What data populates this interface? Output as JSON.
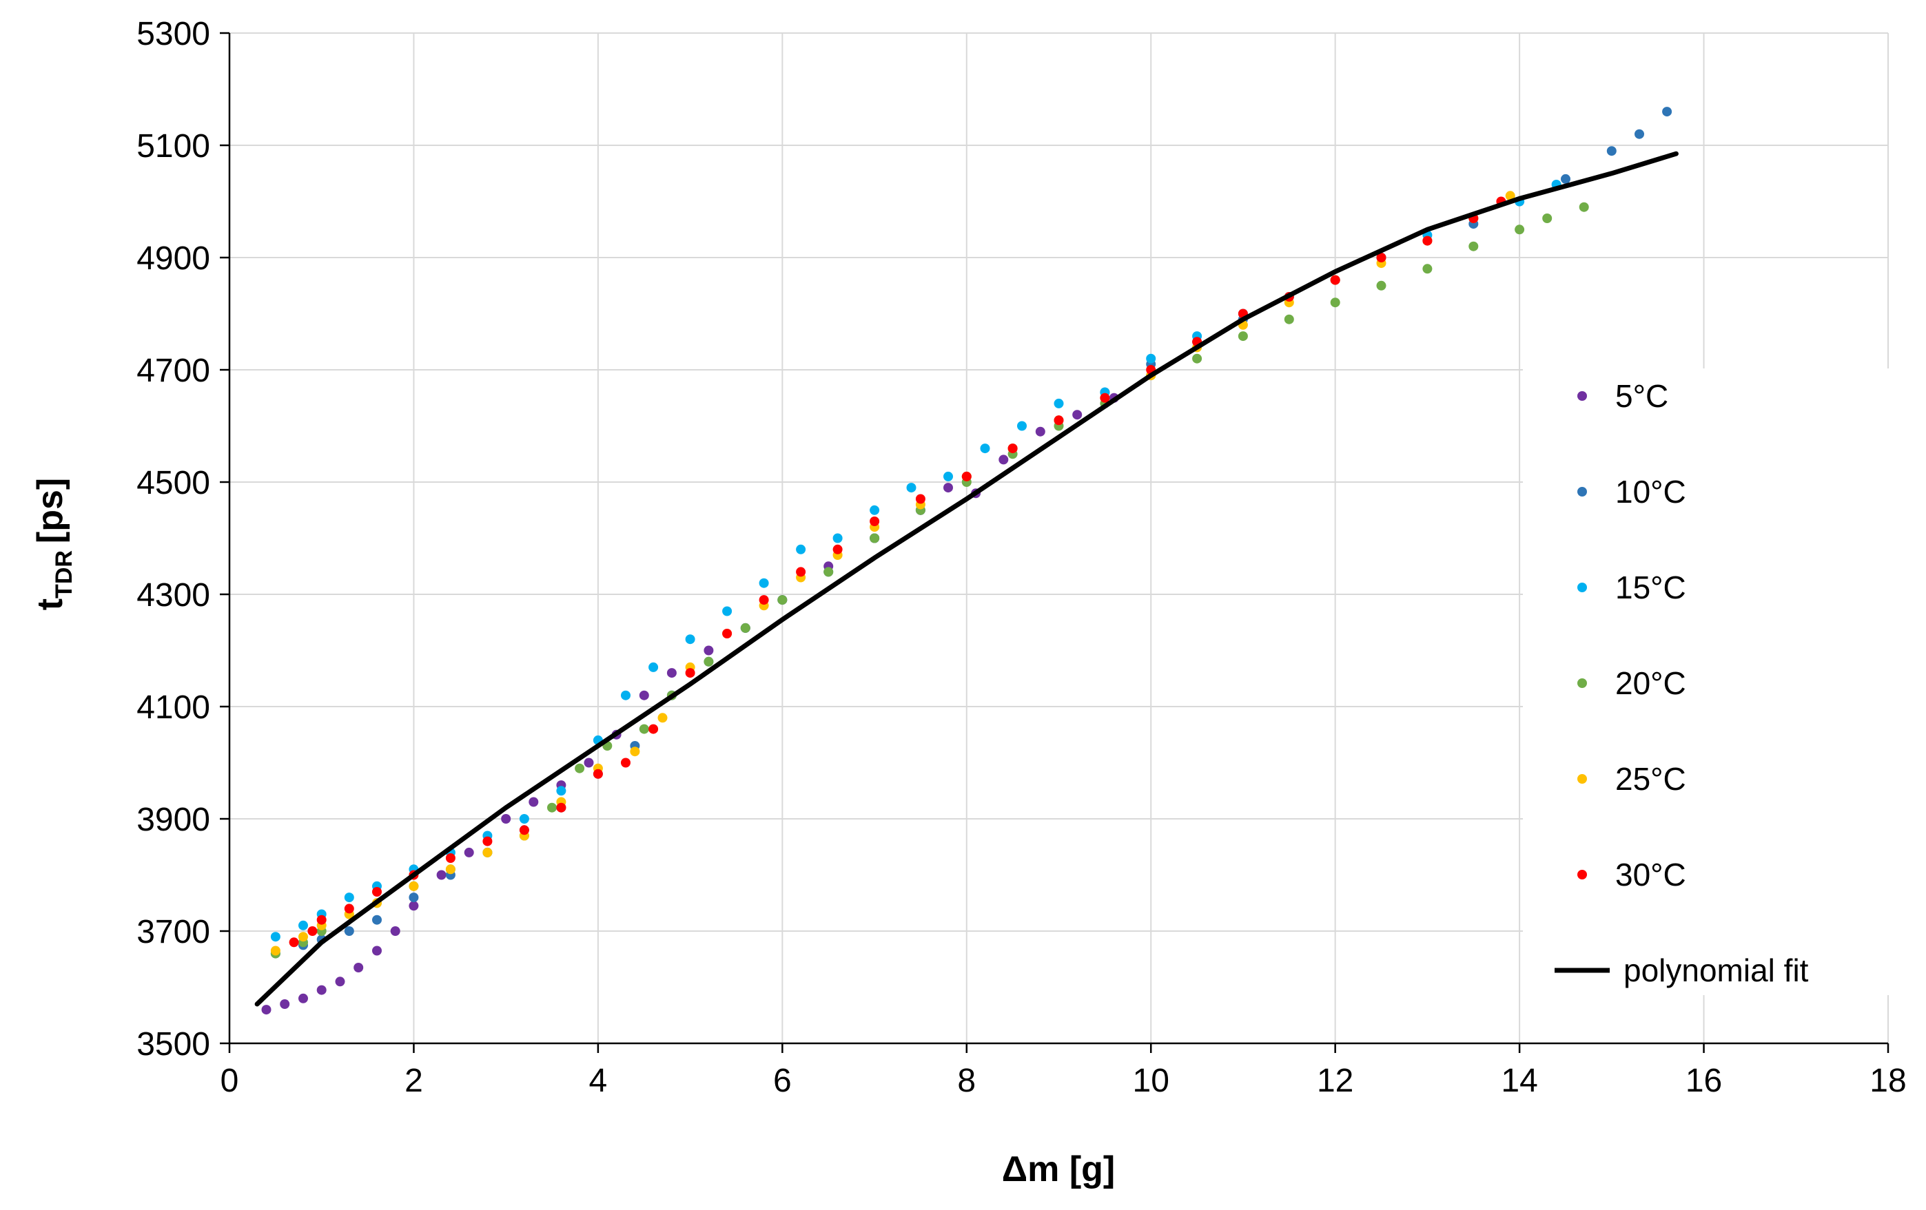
{
  "chart_data": {
    "type": "scatter",
    "xlabel": "Δm [g]",
    "ylabel_main": "t",
    "ylabel_sub": "TDR",
    "ylabel_unit": "[ps]",
    "xlim": [
      0,
      18
    ],
    "ylim": [
      3500,
      5300
    ],
    "x_ticks": [
      "0",
      "2",
      "4",
      "6",
      "8",
      "10",
      "12",
      "14",
      "16",
      "18"
    ],
    "y_ticks": [
      "3500",
      "3700",
      "3900",
      "4100",
      "4300",
      "4500",
      "4700",
      "4900",
      "5100",
      "5300"
    ],
    "grid": true,
    "legend_position": "right",
    "series": [
      {
        "name": "5°C",
        "color": "#7030a0",
        "points": [
          [
            0.4,
            3560
          ],
          [
            0.6,
            3570
          ],
          [
            0.8,
            3580
          ],
          [
            1.0,
            3595
          ],
          [
            1.2,
            3610
          ],
          [
            1.4,
            3635
          ],
          [
            1.6,
            3665
          ],
          [
            1.8,
            3700
          ],
          [
            2.0,
            3745
          ],
          [
            2.3,
            3800
          ],
          [
            2.6,
            3840
          ],
          [
            3.0,
            3900
          ],
          [
            3.3,
            3930
          ],
          [
            3.6,
            3960
          ],
          [
            3.9,
            4000
          ],
          [
            4.2,
            4050
          ],
          [
            4.5,
            4120
          ],
          [
            4.8,
            4160
          ],
          [
            5.2,
            4200
          ],
          [
            5.6,
            4240
          ],
          [
            6.0,
            4290
          ],
          [
            6.5,
            4350
          ],
          [
            7.0,
            4400
          ],
          [
            7.5,
            4450
          ],
          [
            7.8,
            4490
          ],
          [
            8.1,
            4480
          ],
          [
            8.4,
            4540
          ],
          [
            8.8,
            4590
          ],
          [
            9.2,
            4620
          ],
          [
            9.6,
            4650
          ]
        ]
      },
      {
        "name": "10°C",
        "color": "#2e75b6",
        "points": [
          [
            0.5,
            3660
          ],
          [
            0.8,
            3675
          ],
          [
            1.0,
            3685
          ],
          [
            1.3,
            3700
          ],
          [
            1.6,
            3720
          ],
          [
            2.0,
            3760
          ],
          [
            2.4,
            3800
          ],
          [
            2.8,
            3840
          ],
          [
            3.2,
            3880
          ],
          [
            3.6,
            3920
          ],
          [
            4.0,
            3980
          ],
          [
            4.4,
            4030
          ],
          [
            4.8,
            4120
          ],
          [
            5.2,
            4180
          ],
          [
            5.6,
            4240
          ],
          [
            6.0,
            4290
          ],
          [
            6.5,
            4340
          ],
          [
            7.0,
            4400
          ],
          [
            7.5,
            4450
          ],
          [
            8.0,
            4510
          ],
          [
            8.5,
            4560
          ],
          [
            9.0,
            4610
          ],
          [
            9.5,
            4660
          ],
          [
            10.0,
            4710
          ],
          [
            10.5,
            4750
          ],
          [
            11.0,
            4790
          ],
          [
            11.5,
            4830
          ],
          [
            12.0,
            4860
          ],
          [
            12.5,
            4900
          ],
          [
            13.0,
            4930
          ],
          [
            13.5,
            4960
          ],
          [
            14.0,
            5000
          ],
          [
            14.5,
            5040
          ],
          [
            15.0,
            5090
          ],
          [
            15.3,
            5120
          ],
          [
            15.6,
            5160
          ]
        ]
      },
      {
        "name": "15°C",
        "color": "#00b0f0",
        "points": [
          [
            0.5,
            3690
          ],
          [
            0.8,
            3710
          ],
          [
            1.0,
            3730
          ],
          [
            1.3,
            3760
          ],
          [
            1.6,
            3780
          ],
          [
            2.0,
            3810
          ],
          [
            2.4,
            3840
          ],
          [
            2.8,
            3870
          ],
          [
            3.2,
            3900
          ],
          [
            3.6,
            3950
          ],
          [
            4.0,
            4040
          ],
          [
            4.3,
            4120
          ],
          [
            4.6,
            4170
          ],
          [
            5.0,
            4220
          ],
          [
            5.4,
            4270
          ],
          [
            5.8,
            4320
          ],
          [
            6.2,
            4380
          ],
          [
            6.6,
            4400
          ],
          [
            7.0,
            4450
          ],
          [
            7.4,
            4490
          ],
          [
            7.8,
            4510
          ],
          [
            8.2,
            4560
          ],
          [
            8.6,
            4600
          ],
          [
            9.0,
            4640
          ],
          [
            9.5,
            4660
          ],
          [
            10.0,
            4720
          ],
          [
            10.5,
            4760
          ],
          [
            11.0,
            4800
          ],
          [
            11.5,
            4830
          ],
          [
            12.0,
            4860
          ],
          [
            12.5,
            4900
          ],
          [
            13.0,
            4940
          ],
          [
            13.5,
            4970
          ],
          [
            14.0,
            5000
          ],
          [
            14.4,
            5030
          ]
        ]
      },
      {
        "name": "20°C",
        "color": "#70ad47",
        "points": [
          [
            0.5,
            3660
          ],
          [
            0.8,
            3680
          ],
          [
            1.0,
            3700
          ],
          [
            1.3,
            3730
          ],
          [
            1.6,
            3750
          ],
          [
            2.0,
            3780
          ],
          [
            2.4,
            3810
          ],
          [
            2.8,
            3840
          ],
          [
            3.2,
            3870
          ],
          [
            3.5,
            3920
          ],
          [
            3.8,
            3990
          ],
          [
            4.1,
            4030
          ],
          [
            4.5,
            4060
          ],
          [
            4.8,
            4120
          ],
          [
            5.2,
            4180
          ],
          [
            5.6,
            4240
          ],
          [
            6.0,
            4290
          ],
          [
            6.5,
            4340
          ],
          [
            7.0,
            4400
          ],
          [
            7.5,
            4450
          ],
          [
            8.0,
            4500
          ],
          [
            8.5,
            4550
          ],
          [
            9.0,
            4600
          ],
          [
            9.5,
            4640
          ],
          [
            10.0,
            4690
          ],
          [
            10.5,
            4720
          ],
          [
            11.0,
            4760
          ],
          [
            11.5,
            4790
          ],
          [
            12.0,
            4820
          ],
          [
            12.5,
            4850
          ],
          [
            13.0,
            4880
          ],
          [
            13.5,
            4920
          ],
          [
            14.0,
            4950
          ],
          [
            14.3,
            4970
          ],
          [
            14.7,
            4990
          ]
        ]
      },
      {
        "name": "25°C",
        "color": "#ffc000",
        "points": [
          [
            0.5,
            3665
          ],
          [
            0.8,
            3690
          ],
          [
            1.0,
            3710
          ],
          [
            1.3,
            3730
          ],
          [
            1.6,
            3750
          ],
          [
            2.0,
            3780
          ],
          [
            2.4,
            3810
          ],
          [
            2.8,
            3840
          ],
          [
            3.2,
            3870
          ],
          [
            3.6,
            3930
          ],
          [
            4.0,
            3990
          ],
          [
            4.4,
            4020
          ],
          [
            4.7,
            4080
          ],
          [
            5.0,
            4170
          ],
          [
            5.4,
            4230
          ],
          [
            5.8,
            4280
          ],
          [
            6.2,
            4330
          ],
          [
            6.6,
            4370
          ],
          [
            7.0,
            4420
          ],
          [
            7.5,
            4460
          ],
          [
            8.0,
            4510
          ],
          [
            8.5,
            4560
          ],
          [
            9.0,
            4610
          ],
          [
            9.5,
            4650
          ],
          [
            10.0,
            4690
          ],
          [
            10.5,
            4740
          ],
          [
            11.0,
            4780
          ],
          [
            11.5,
            4820
          ],
          [
            12.0,
            4860
          ],
          [
            12.5,
            4890
          ],
          [
            13.0,
            4930
          ],
          [
            13.5,
            4970
          ],
          [
            13.9,
            5010
          ]
        ]
      },
      {
        "name": "30°C",
        "color": "#ff0000",
        "points": [
          [
            0.7,
            3680
          ],
          [
            0.9,
            3700
          ],
          [
            1.0,
            3720
          ],
          [
            1.3,
            3740
          ],
          [
            1.6,
            3770
          ],
          [
            2.0,
            3800
          ],
          [
            2.4,
            3830
          ],
          [
            2.8,
            3860
          ],
          [
            3.2,
            3880
          ],
          [
            3.6,
            3920
          ],
          [
            4.0,
            3980
          ],
          [
            4.3,
            4000
          ],
          [
            4.6,
            4060
          ],
          [
            5.0,
            4160
          ],
          [
            5.4,
            4230
          ],
          [
            5.8,
            4290
          ],
          [
            6.2,
            4340
          ],
          [
            6.6,
            4380
          ],
          [
            7.0,
            4430
          ],
          [
            7.5,
            4470
          ],
          [
            8.0,
            4510
          ],
          [
            8.5,
            4560
          ],
          [
            9.0,
            4610
          ],
          [
            9.5,
            4650
          ],
          [
            10.0,
            4700
          ],
          [
            10.5,
            4750
          ],
          [
            11.0,
            4800
          ],
          [
            11.5,
            4830
          ],
          [
            12.0,
            4860
          ],
          [
            12.5,
            4900
          ],
          [
            13.0,
            4930
          ],
          [
            13.5,
            4970
          ],
          [
            13.8,
            5000
          ]
        ]
      },
      {
        "name": "polynomial fit",
        "color": "#000000",
        "line": true,
        "points": [
          [
            0.3,
            3570
          ],
          [
            1.0,
            3680
          ],
          [
            2.0,
            3800
          ],
          [
            3.0,
            3920
          ],
          [
            4.0,
            4030
          ],
          [
            5.0,
            4140
          ],
          [
            6.0,
            4255
          ],
          [
            7.0,
            4365
          ],
          [
            8.0,
            4470
          ],
          [
            9.0,
            4580
          ],
          [
            10.0,
            4690
          ],
          [
            11.0,
            4790
          ],
          [
            12.0,
            4875
          ],
          [
            13.0,
            4950
          ],
          [
            14.0,
            5005
          ],
          [
            15.0,
            5050
          ],
          [
            15.7,
            5085
          ]
        ]
      }
    ]
  }
}
